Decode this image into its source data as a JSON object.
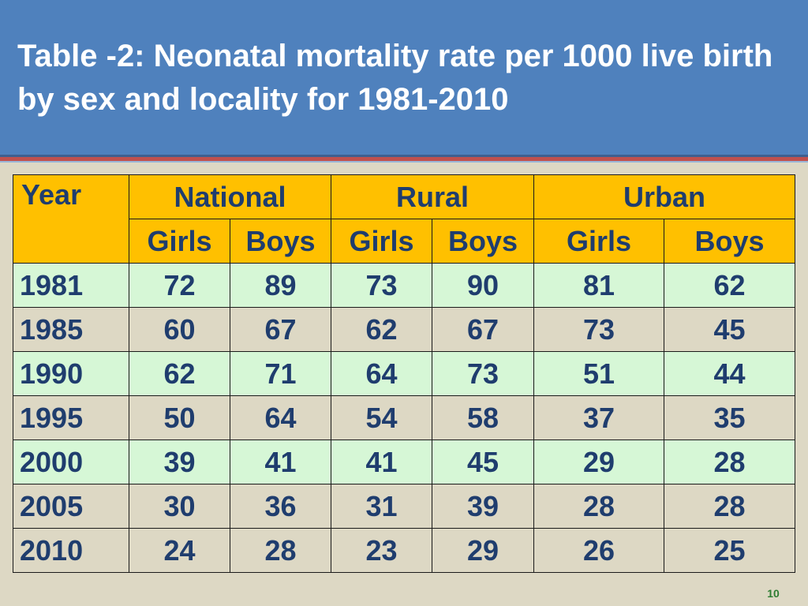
{
  "slide": {
    "title": "Table -2: Neonatal mortality rate per 1000 live birth by sex and locality for 1981-2010",
    "page_number": "10"
  },
  "table": {
    "year_header": "Year",
    "groups": [
      "National",
      "Rural",
      "Urban"
    ],
    "subheaders": [
      "Girls",
      "Boys",
      "Girls",
      "Boys",
      "Girls",
      "Boys"
    ],
    "rows": [
      {
        "year": "1981",
        "values": [
          "72",
          "89",
          "73",
          "90",
          "81",
          "62"
        ]
      },
      {
        "year": "1985",
        "values": [
          "60",
          "67",
          "62",
          "67",
          "73",
          "45"
        ]
      },
      {
        "year": "1990",
        "values": [
          "62",
          "71",
          "64",
          "73",
          "51",
          "44"
        ]
      },
      {
        "year": "1995",
        "values": [
          "50",
          "64",
          "54",
          "58",
          "37",
          "35"
        ]
      },
      {
        "year": "2000",
        "values": [
          "39",
          "41",
          "41",
          "45",
          "29",
          "28"
        ]
      },
      {
        "year": "2005",
        "values": [
          "30",
          "36",
          "31",
          "39",
          "28",
          "28"
        ]
      },
      {
        "year": "2010",
        "values": [
          "24",
          "28",
          "23",
          "29",
          "26",
          "25"
        ]
      }
    ]
  },
  "colors": {
    "header_background": "#4f81bd",
    "table_header": "#ffc000",
    "row_highlight": "#d6f7d6",
    "text": "#1f3d6e"
  }
}
